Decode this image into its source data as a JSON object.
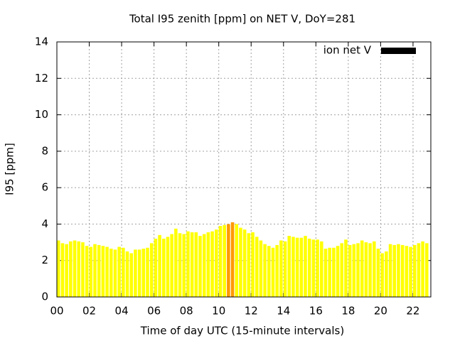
{
  "chart_data": {
    "type": "bar",
    "title": "Total I95 zenith [ppm] on NET V, DoY=281",
    "x_label": "Time of day UTC (15-minute intervals)",
    "y_label": "I95 [ppm]",
    "x": [
      0,
      0.25,
      0.5,
      0.75,
      1,
      1.25,
      1.5,
      1.75,
      2,
      2.25,
      2.5,
      2.75,
      3,
      3.25,
      3.5,
      3.75,
      4,
      4.25,
      4.5,
      4.75,
      5,
      5.25,
      5.5,
      5.75,
      6,
      6.25,
      6.5,
      6.75,
      7,
      7.25,
      7.5,
      7.75,
      8,
      8.25,
      8.5,
      8.75,
      9,
      9.25,
      9.5,
      9.75,
      10,
      10.25,
      10.5,
      10.75,
      11,
      11.25,
      11.5,
      11.75,
      12,
      12.25,
      12.5,
      12.75,
      13,
      13.25,
      13.5,
      13.75,
      14,
      14.25,
      14.5,
      14.75,
      15,
      15.25,
      15.5,
      15.75,
      16,
      16.25,
      16.5,
      16.75,
      17,
      17.25,
      17.5,
      17.75,
      18,
      18.25,
      18.5,
      18.75,
      19,
      19.25,
      19.5,
      19.75,
      20,
      20.25,
      20.5,
      20.75,
      21,
      21.25,
      21.5,
      21.75,
      22,
      22.25,
      22.5,
      22.75
    ],
    "series": [
      {
        "name": "ion net V",
        "color": "#000000",
        "values": [
          3.1,
          2.95,
          2.9,
          3.05,
          3.1,
          3.05,
          3.0,
          2.8,
          2.75,
          2.9,
          2.85,
          2.8,
          2.75,
          2.65,
          2.6,
          2.75,
          2.7,
          2.5,
          2.4,
          2.6,
          2.6,
          2.65,
          2.7,
          2.95,
          3.2,
          3.4,
          3.2,
          3.3,
          3.45,
          3.75,
          3.5,
          3.45,
          3.6,
          3.55,
          3.55,
          3.35,
          3.45,
          3.55,
          3.6,
          3.7,
          3.9,
          3.95,
          4.0,
          4.1,
          4.0,
          3.8,
          3.7,
          3.5,
          3.55,
          3.3,
          3.1,
          2.9,
          2.8,
          2.7,
          2.85,
          3.1,
          3.05,
          3.35,
          3.3,
          3.25,
          3.25,
          3.35,
          3.2,
          3.15,
          3.15,
          3.05,
          2.65,
          2.7,
          2.7,
          2.8,
          2.95,
          3.15,
          2.85,
          2.9,
          2.95,
          3.1,
          3.0,
          2.95,
          3.05,
          2.65,
          2.4,
          2.5,
          2.9,
          2.85,
          2.9,
          2.85,
          2.8,
          2.75,
          2.85,
          2.95,
          3.05,
          2.95
        ],
        "bar_colors": [
          "#ffff00",
          "#ffff00",
          "#ffff00",
          "#ffff00",
          "#ffff00",
          "#ffff00",
          "#ffff00",
          "#ffff00",
          "#ffff00",
          "#ffff00",
          "#ffff00",
          "#ffff00",
          "#ffff00",
          "#ffff00",
          "#ffff00",
          "#ffff00",
          "#ffff00",
          "#ffff00",
          "#ffff00",
          "#ffff00",
          "#ffff00",
          "#ffff00",
          "#ffff00",
          "#ffff00",
          "#ffff00",
          "#ffff00",
          "#ffff00",
          "#ffff00",
          "#ffff00",
          "#ffff00",
          "#ffff00",
          "#ffff00",
          "#ffff00",
          "#ffff00",
          "#ffff00",
          "#ffff00",
          "#ffff00",
          "#ffff00",
          "#ffff00",
          "#ffff00",
          "#ffff00",
          "#ffff00",
          "#ff9900",
          "#ff9900",
          "#ffff00",
          "#ffff00",
          "#ffff00",
          "#ffff00",
          "#ffff00",
          "#ffff00",
          "#ffff00",
          "#ffff00",
          "#ffff00",
          "#ffff00",
          "#ffff00",
          "#ffff00",
          "#ffff00",
          "#ffff00",
          "#ffff00",
          "#ffff00",
          "#ffff00",
          "#ffff00",
          "#ffff00",
          "#ffff00",
          "#ffff00",
          "#ffff00",
          "#ffff00",
          "#ffff00",
          "#ffff00",
          "#ffff00",
          "#ffff00",
          "#ffff00",
          "#ffff00",
          "#ffff00",
          "#ffff00",
          "#ffff00",
          "#ffff00",
          "#ffff00",
          "#ffff00",
          "#ffff00",
          "#ffff00",
          "#ffff00",
          "#ffff00",
          "#ffff00",
          "#ffff00",
          "#ffff00",
          "#ffff00",
          "#ffff00",
          "#ffff00",
          "#ffff00",
          "#ffff00",
          "#ffff00"
        ]
      }
    ],
    "xlim": [
      0,
      23.1
    ],
    "xticks": [
      {
        "value": 0,
        "label": "00"
      },
      {
        "value": 2,
        "label": "02"
      },
      {
        "value": 4,
        "label": "04"
      },
      {
        "value": 6,
        "label": "06"
      },
      {
        "value": 8,
        "label": "08"
      },
      {
        "value": 10,
        "label": "10"
      },
      {
        "value": 12,
        "label": "12"
      },
      {
        "value": 14,
        "label": "14"
      },
      {
        "value": 16,
        "label": "16"
      },
      {
        "value": 18,
        "label": "18"
      },
      {
        "value": 20,
        "label": "20"
      },
      {
        "value": 22,
        "label": "22"
      }
    ],
    "ylim": [
      0,
      14
    ],
    "yticks": [
      0,
      2,
      4,
      6,
      8,
      10,
      12,
      14
    ],
    "grid": true,
    "legend": "top-right"
  }
}
